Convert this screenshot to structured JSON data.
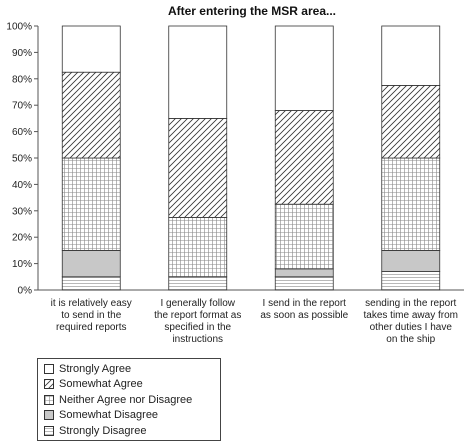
{
  "chart_data": {
    "type": "bar",
    "stacked": true,
    "percent": true,
    "title": "After entering the MSR area...",
    "xlabel": "",
    "ylabel": "",
    "ylim": [
      0,
      100
    ],
    "ytick_labels": [
      "0%",
      "10%",
      "20%",
      "30%",
      "40%",
      "50%",
      "60%",
      "70%",
      "80%",
      "90%",
      "100%"
    ],
    "grid": false,
    "legend_position": "bottom-left",
    "categories": [
      "it is relatively easy to send in the required reports",
      "I generally follow the report format as specified in the instructions",
      "I send in the report as soon as possible",
      "sending in the report takes time away from other duties I have on the ship"
    ],
    "category_lines": [
      [
        "it is relatively easy",
        "to send in the",
        "required reports"
      ],
      [
        "I generally follow",
        "the report format as",
        "specified in the",
        "instructions"
      ],
      [
        "I send in the report",
        "as soon as possible"
      ],
      [
        "sending in the report",
        "takes time away from",
        "other duties I have",
        "on the ship"
      ]
    ],
    "series": [
      {
        "name": "Strongly Disagree",
        "pattern": "hlines",
        "values": [
          5,
          5,
          5,
          7
        ]
      },
      {
        "name": "Somewhat Disagree",
        "pattern": "gray",
        "values": [
          10,
          0,
          3,
          8
        ]
      },
      {
        "name": "Neither Agree nor Disagree",
        "pattern": "grid",
        "values": [
          35,
          22.5,
          24.5,
          35
        ]
      },
      {
        "name": "Somewhat Agree",
        "pattern": "diagonal",
        "values": [
          32.5,
          37.5,
          35.5,
          27.5
        ]
      },
      {
        "name": "Strongly Agree",
        "pattern": "white",
        "values": [
          17.5,
          35,
          32,
          22.5
        ]
      }
    ],
    "legend_order": [
      "Strongly Agree",
      "Somewhat Agree",
      "Neither Agree nor Disagree",
      "Somewhat Disagree",
      "Strongly Disagree"
    ]
  }
}
